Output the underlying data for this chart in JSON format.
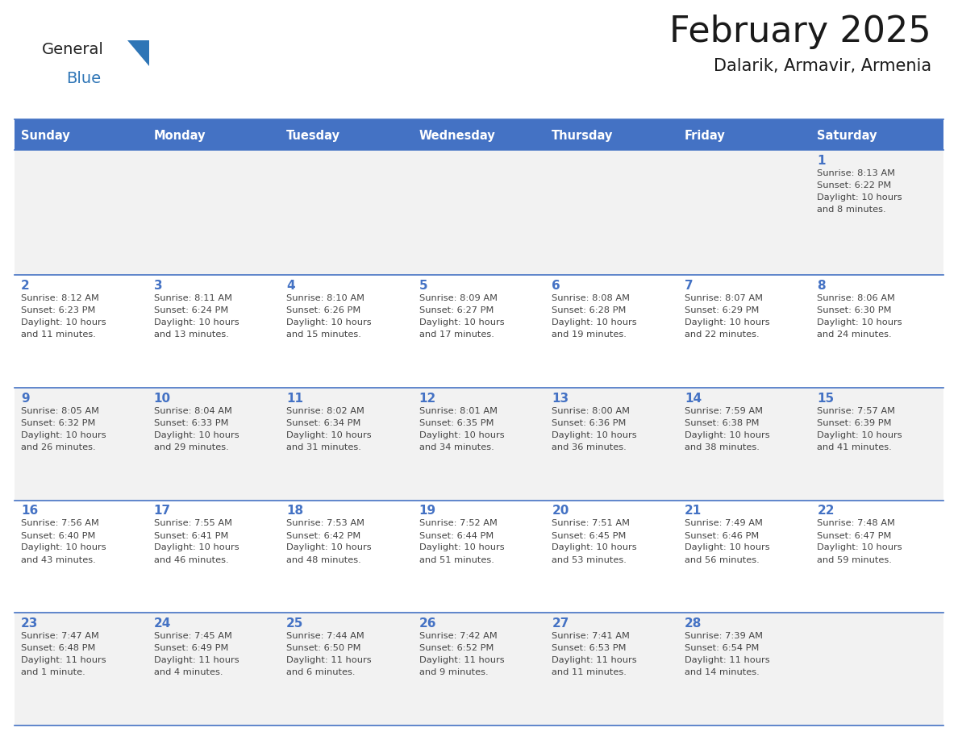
{
  "title": "February 2025",
  "subtitle": "Dalarik, Armavir, Armenia",
  "header_bg": "#4472C4",
  "header_text_color": "#FFFFFF",
  "cell_bg_odd": "#F2F2F2",
  "cell_bg_even": "#FFFFFF",
  "day_number_color": "#4472C4",
  "text_color": "#444444",
  "line_color": "#4472C4",
  "logo_general_color": "#222222",
  "logo_blue_color": "#2E75B6",
  "logo_triangle_color": "#2E75B6",
  "days_of_week": [
    "Sunday",
    "Monday",
    "Tuesday",
    "Wednesday",
    "Thursday",
    "Friday",
    "Saturday"
  ],
  "weeks": [
    [
      {
        "day": null,
        "sunrise": null,
        "sunset": null,
        "daylight": null
      },
      {
        "day": null,
        "sunrise": null,
        "sunset": null,
        "daylight": null
      },
      {
        "day": null,
        "sunrise": null,
        "sunset": null,
        "daylight": null
      },
      {
        "day": null,
        "sunrise": null,
        "sunset": null,
        "daylight": null
      },
      {
        "day": null,
        "sunrise": null,
        "sunset": null,
        "daylight": null
      },
      {
        "day": null,
        "sunrise": null,
        "sunset": null,
        "daylight": null
      },
      {
        "day": 1,
        "sunrise": "8:13 AM",
        "sunset": "6:22 PM",
        "daylight": "10 hours\nand 8 minutes."
      }
    ],
    [
      {
        "day": 2,
        "sunrise": "8:12 AM",
        "sunset": "6:23 PM",
        "daylight": "10 hours\nand 11 minutes."
      },
      {
        "day": 3,
        "sunrise": "8:11 AM",
        "sunset": "6:24 PM",
        "daylight": "10 hours\nand 13 minutes."
      },
      {
        "day": 4,
        "sunrise": "8:10 AM",
        "sunset": "6:26 PM",
        "daylight": "10 hours\nand 15 minutes."
      },
      {
        "day": 5,
        "sunrise": "8:09 AM",
        "sunset": "6:27 PM",
        "daylight": "10 hours\nand 17 minutes."
      },
      {
        "day": 6,
        "sunrise": "8:08 AM",
        "sunset": "6:28 PM",
        "daylight": "10 hours\nand 19 minutes."
      },
      {
        "day": 7,
        "sunrise": "8:07 AM",
        "sunset": "6:29 PM",
        "daylight": "10 hours\nand 22 minutes."
      },
      {
        "day": 8,
        "sunrise": "8:06 AM",
        "sunset": "6:30 PM",
        "daylight": "10 hours\nand 24 minutes."
      }
    ],
    [
      {
        "day": 9,
        "sunrise": "8:05 AM",
        "sunset": "6:32 PM",
        "daylight": "10 hours\nand 26 minutes."
      },
      {
        "day": 10,
        "sunrise": "8:04 AM",
        "sunset": "6:33 PM",
        "daylight": "10 hours\nand 29 minutes."
      },
      {
        "day": 11,
        "sunrise": "8:02 AM",
        "sunset": "6:34 PM",
        "daylight": "10 hours\nand 31 minutes."
      },
      {
        "day": 12,
        "sunrise": "8:01 AM",
        "sunset": "6:35 PM",
        "daylight": "10 hours\nand 34 minutes."
      },
      {
        "day": 13,
        "sunrise": "8:00 AM",
        "sunset": "6:36 PM",
        "daylight": "10 hours\nand 36 minutes."
      },
      {
        "day": 14,
        "sunrise": "7:59 AM",
        "sunset": "6:38 PM",
        "daylight": "10 hours\nand 38 minutes."
      },
      {
        "day": 15,
        "sunrise": "7:57 AM",
        "sunset": "6:39 PM",
        "daylight": "10 hours\nand 41 minutes."
      }
    ],
    [
      {
        "day": 16,
        "sunrise": "7:56 AM",
        "sunset": "6:40 PM",
        "daylight": "10 hours\nand 43 minutes."
      },
      {
        "day": 17,
        "sunrise": "7:55 AM",
        "sunset": "6:41 PM",
        "daylight": "10 hours\nand 46 minutes."
      },
      {
        "day": 18,
        "sunrise": "7:53 AM",
        "sunset": "6:42 PM",
        "daylight": "10 hours\nand 48 minutes."
      },
      {
        "day": 19,
        "sunrise": "7:52 AM",
        "sunset": "6:44 PM",
        "daylight": "10 hours\nand 51 minutes."
      },
      {
        "day": 20,
        "sunrise": "7:51 AM",
        "sunset": "6:45 PM",
        "daylight": "10 hours\nand 53 minutes."
      },
      {
        "day": 21,
        "sunrise": "7:49 AM",
        "sunset": "6:46 PM",
        "daylight": "10 hours\nand 56 minutes."
      },
      {
        "day": 22,
        "sunrise": "7:48 AM",
        "sunset": "6:47 PM",
        "daylight": "10 hours\nand 59 minutes."
      }
    ],
    [
      {
        "day": 23,
        "sunrise": "7:47 AM",
        "sunset": "6:48 PM",
        "daylight": "11 hours\nand 1 minute."
      },
      {
        "day": 24,
        "sunrise": "7:45 AM",
        "sunset": "6:49 PM",
        "daylight": "11 hours\nand 4 minutes."
      },
      {
        "day": 25,
        "sunrise": "7:44 AM",
        "sunset": "6:50 PM",
        "daylight": "11 hours\nand 6 minutes."
      },
      {
        "day": 26,
        "sunrise": "7:42 AM",
        "sunset": "6:52 PM",
        "daylight": "11 hours\nand 9 minutes."
      },
      {
        "day": 27,
        "sunrise": "7:41 AM",
        "sunset": "6:53 PM",
        "daylight": "11 hours\nand 11 minutes."
      },
      {
        "day": 28,
        "sunrise": "7:39 AM",
        "sunset": "6:54 PM",
        "daylight": "11 hours\nand 14 minutes."
      },
      {
        "day": null,
        "sunrise": null,
        "sunset": null,
        "daylight": null
      }
    ]
  ]
}
